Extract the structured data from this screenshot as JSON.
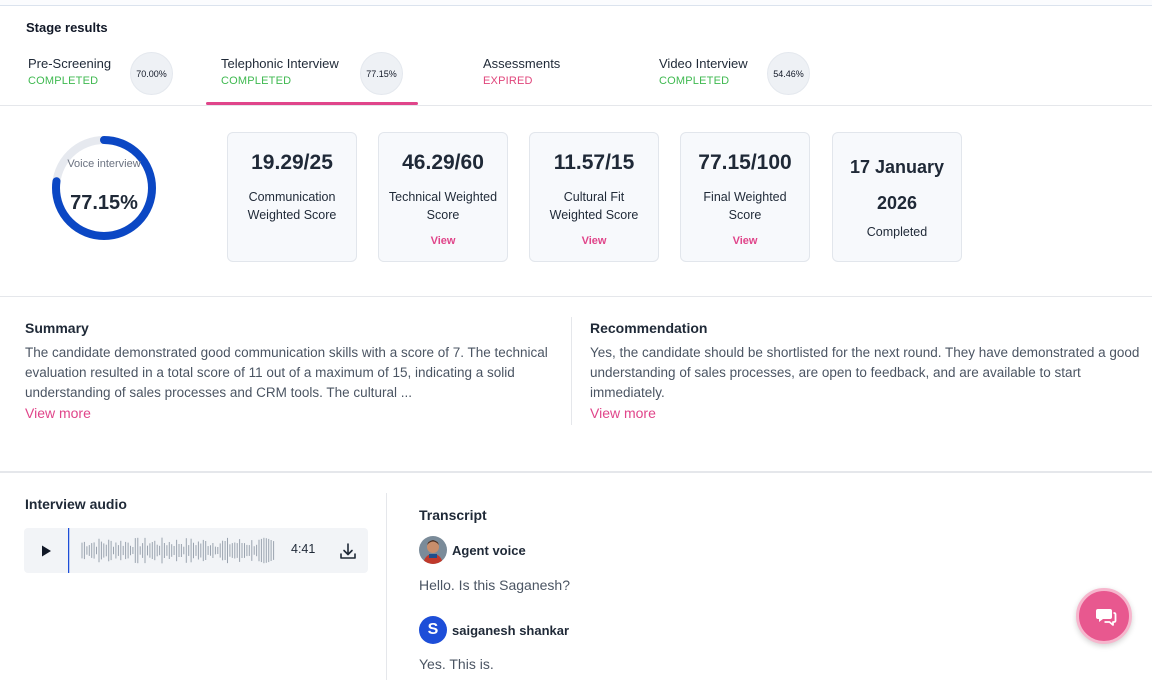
{
  "stage_results": {
    "title": "Stage results",
    "tabs": [
      {
        "name": "Pre-Screening",
        "status": "COMPLETED",
        "percent": "70.00%"
      },
      {
        "name": "Telephonic Interview",
        "status": "COMPLETED",
        "percent": "77.15%"
      },
      {
        "name": "Assessments",
        "status": "EXPIRED"
      },
      {
        "name": "Video Interview",
        "status": "COMPLETED",
        "percent": "54.46%"
      }
    ],
    "active_tab": "Telephonic Interview"
  },
  "score_ring": {
    "label": "Voice interview",
    "value": "77.15%",
    "fraction": 0.7715
  },
  "score_cards": [
    {
      "value": "19.29/25",
      "label": "Communication Weighted Score"
    },
    {
      "value": "46.29/60",
      "label": "Technical Weighted Score",
      "action": "View"
    },
    {
      "value": "11.57/15",
      "label": "Cultural Fit Weighted Score",
      "action": "View"
    },
    {
      "value": "77.15/100",
      "label": "Final Weighted Score",
      "action": "View"
    },
    {
      "value": "17 January 2026",
      "label": "Completed"
    }
  ],
  "summary": {
    "title": "Summary",
    "text": "The candidate demonstrated good communication skills with a score of 7. The technical evaluation resulted in a total score of 11 out of a maximum of 15, indicating a solid understanding of sales processes and CRM tools. The cultural ...",
    "view_more": "View more"
  },
  "recommendation": {
    "title": "Recommendation",
    "text": "Yes, the candidate should be shortlisted for the next round. They have demonstrated a good understanding of sales processes, are open to feedback, and are available to start immediately.",
    "view_more": "View more"
  },
  "interview_audio": {
    "title": "Interview audio",
    "duration": "4:41",
    "progress": 0.0
  },
  "transcript": {
    "title": "Transcript",
    "entries": [
      {
        "speaker": "Agent voice",
        "text": "Hello. Is this Saganesh?"
      },
      {
        "speaker": "saiganesh shankar",
        "initial": "S",
        "text": "Yes. This is."
      }
    ]
  },
  "colors": {
    "accent": "#e0458a",
    "ring": "#0b47c4",
    "completed": "#3fb950",
    "expired": "#e0457b"
  },
  "icons": [
    "play-icon",
    "download-icon",
    "chat-icon"
  ]
}
